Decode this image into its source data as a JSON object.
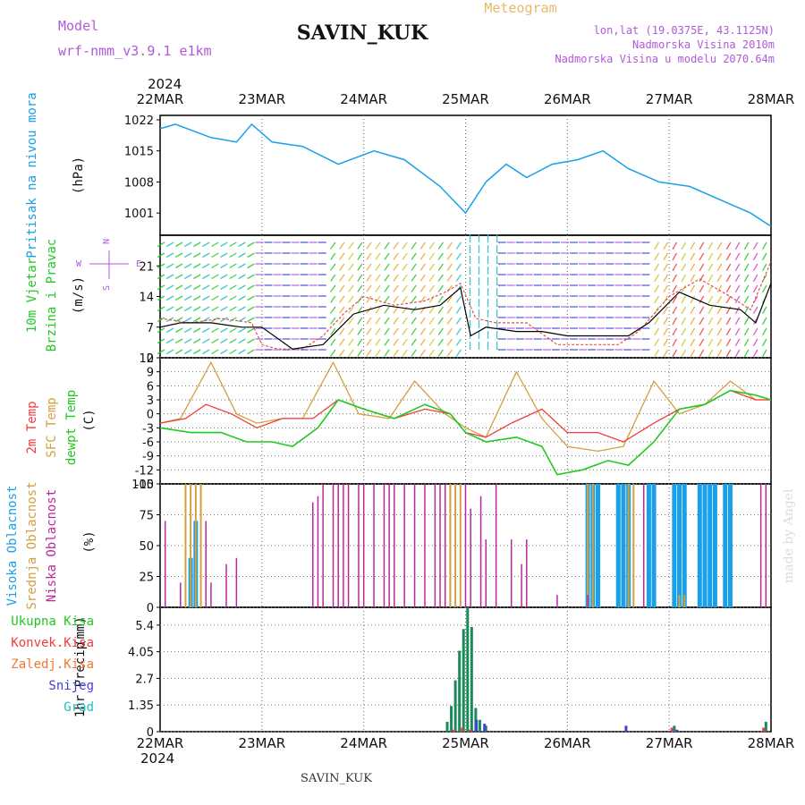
{
  "header": {
    "model_label": "Model",
    "model_name": "wrf-nmm_v3.9.1 e1km",
    "station": "SAVIN_KUK",
    "product": "Meteogram",
    "lonlat": "lon,lat (19.0375E, 43.1125N)",
    "elev": "Nadmorska Visina 2010m",
    "elev_model": "Nadmorska Visina u modelu 2070.64m",
    "year": "2024",
    "footer_station": "SAVIN_KUK",
    "watermark": "made by Angel"
  },
  "colors": {
    "purple": "#b05ad8",
    "orange": "#e8b86a",
    "sky": "#1aa0e8",
    "green": "#22c822",
    "red": "#f03c3c",
    "tan": "#d2a040",
    "magenta": "#c0259a",
    "blue": "#4040d8",
    "teal": "#20c0c0",
    "darkgreen": "#1a8a5a",
    "ochre": "#a8a020"
  },
  "chart_data": [
    {
      "type": "line",
      "panel": "pressure",
      "ylabel_1": "Pritisak na nivou mora",
      "ylabel_2": "(hPa)",
      "x_ticks": [
        "22MAR",
        "23MAR",
        "24MAR",
        "25MAR",
        "26MAR",
        "27MAR",
        "28MAR"
      ],
      "y_ticks": [
        "1022",
        "1015",
        "1008",
        "1001"
      ],
      "ylim": [
        996,
        1023
      ],
      "series": [
        {
          "x": [
            0,
            0.15,
            0.5,
            0.75,
            0.9,
            1.1,
            1.4,
            1.75,
            2.1,
            2.4,
            2.75,
            3.0,
            3.2,
            3.4,
            3.6,
            3.85,
            4.1,
            4.35,
            4.6,
            4.9,
            5.2,
            5.5,
            5.8,
            6.0
          ],
          "values": [
            1020,
            1021,
            1018,
            1017,
            1021,
            1017,
            1016,
            1012,
            1015,
            1013,
            1007,
            1001,
            1008,
            1012,
            1009,
            1012,
            1013,
            1015,
            1011,
            1008,
            1007,
            1004,
            1001,
            998
          ]
        }
      ]
    },
    {
      "type": "line",
      "panel": "wind",
      "ylabel_1": "10m Vjetar",
      "ylabel_2": "Brzina i Pravac",
      "ylabel_3": "(m/s)",
      "compass_n": "N",
      "compass_s": "S",
      "compass_w": "W",
      "compass_e": "E",
      "y_ticks": [
        "21",
        "14",
        "7",
        "0"
      ],
      "ylim": [
        0,
        28
      ],
      "series": [
        {
          "name": "speed",
          "x": [
            0,
            0.2,
            0.5,
            0.8,
            1.0,
            1.3,
            1.6,
            1.9,
            2.2,
            2.5,
            2.75,
            2.95,
            3.05,
            3.2,
            3.5,
            3.75,
            4.0,
            4.3,
            4.6,
            4.8,
            5.1,
            5.4,
            5.7,
            5.85,
            6.0
          ],
          "values": [
            7,
            8,
            8,
            7,
            7,
            2,
            3,
            10,
            12,
            11,
            12,
            16,
            5,
            7,
            6,
            6,
            5,
            5,
            5,
            8,
            15,
            12,
            11,
            8,
            17
          ]
        },
        {
          "name": "gust",
          "x": [
            0,
            0.3,
            0.6,
            0.9,
            1.0,
            1.15,
            1.4,
            1.6,
            1.8,
            2.0,
            2.3,
            2.6,
            2.8,
            2.95,
            3.1,
            3.3,
            3.6,
            3.9,
            4.2,
            4.5,
            4.7,
            5.0,
            5.3,
            5.6,
            5.8,
            6.0
          ],
          "values": [
            9,
            8,
            9,
            8,
            3,
            2,
            2,
            5,
            10,
            14,
            12,
            13,
            15,
            17,
            9,
            8,
            8,
            3,
            3,
            3,
            6,
            14,
            18,
            14,
            11,
            22
          ]
        }
      ]
    },
    {
      "type": "line",
      "panel": "temperature",
      "ylabel_1": "2m Temp",
      "ylabel_2": "SFC Temp",
      "ylabel_3": "dewpt Temp",
      "ylabel_4": "(C)",
      "y_ticks": [
        "12",
        "9",
        "6",
        "3",
        "0",
        "-3",
        "-6",
        "-9",
        "-12",
        "-15"
      ],
      "ylim": [
        -15,
        12
      ],
      "series": [
        {
          "name": "2m Temp",
          "x": [
            0,
            0.25,
            0.45,
            0.7,
            0.95,
            1.2,
            1.5,
            1.75,
            2.0,
            2.3,
            2.6,
            2.85,
            3.0,
            3.2,
            3.45,
            3.75,
            4.0,
            4.3,
            4.55,
            4.85,
            5.1,
            5.35,
            5.6,
            5.85,
            6.0
          ],
          "values": [
            -2,
            -1,
            2,
            0,
            -3,
            -1,
            -1,
            3,
            1,
            -1,
            1,
            0,
            -4,
            -5,
            -2,
            1,
            -4,
            -4,
            -6,
            -2,
            1,
            2,
            5,
            3,
            3
          ]
        },
        {
          "name": "SFC Temp",
          "x": [
            0,
            0.2,
            0.5,
            0.75,
            0.95,
            1.2,
            1.4,
            1.7,
            1.95,
            2.25,
            2.5,
            2.8,
            3.0,
            3.2,
            3.5,
            3.75,
            4.0,
            4.3,
            4.55,
            4.85,
            5.1,
            5.35,
            5.6,
            5.85,
            6.0
          ],
          "values": [
            -2,
            -1,
            11,
            0,
            -2,
            -1,
            -1,
            11,
            0,
            -1,
            7,
            0,
            -3,
            -5,
            9,
            -1,
            -7,
            -8,
            -7,
            7,
            0,
            2,
            7,
            3,
            3
          ]
        },
        {
          "name": "dewpt Temp",
          "x": [
            0,
            0.3,
            0.6,
            0.85,
            1.1,
            1.3,
            1.55,
            1.75,
            2.0,
            2.3,
            2.6,
            2.85,
            3.0,
            3.2,
            3.5,
            3.75,
            3.9,
            4.15,
            4.4,
            4.6,
            4.85,
            5.1,
            5.35,
            5.6,
            5.85,
            6.0
          ],
          "values": [
            -3,
            -4,
            -4,
            -6,
            -6,
            -7,
            -3,
            3,
            1,
            -1,
            2,
            0,
            -4,
            -6,
            -5,
            -7,
            -13,
            -12,
            -10,
            -11,
            -6,
            1,
            2,
            5,
            4,
            3
          ]
        }
      ]
    },
    {
      "type": "bar",
      "panel": "cloud",
      "ylabel_1": "Visoka Oblacnost",
      "ylabel_2": "Srednja Oblacnost",
      "ylabel_3": "Niska Oblacnost",
      "ylabel_4": "(%)",
      "y_ticks": [
        "100",
        "75",
        "50",
        "25",
        "0"
      ],
      "ylim": [
        0,
        100
      ],
      "series": [
        {
          "name": "Visoka Oblacnost",
          "x": [
            0.3,
            0.35,
            4.2,
            4.25,
            4.3,
            4.5,
            4.55,
            4.6,
            4.8,
            4.85,
            5.05,
            5.1,
            5.15,
            5.3,
            5.35,
            5.4,
            5.45,
            5.55,
            5.6
          ],
          "values": [
            40,
            70,
            100,
            100,
            100,
            100,
            100,
            100,
            100,
            100,
            100,
            100,
            100,
            100,
            100,
            100,
            100,
            100,
            100
          ]
        },
        {
          "name": "Srednja Oblacnost",
          "x": [
            0.25,
            0.3,
            0.35,
            0.4,
            2.85,
            2.9,
            2.95,
            4.2,
            4.25,
            4.6,
            4.65,
            5.1,
            5.15
          ],
          "values": [
            100,
            100,
            100,
            100,
            100,
            100,
            100,
            100,
            100,
            100,
            100,
            10,
            10
          ]
        },
        {
          "name": "Niska Oblacnost",
          "x": [
            0.05,
            0.2,
            0.45,
            0.5,
            0.65,
            0.75,
            1.5,
            1.55,
            1.6,
            1.7,
            1.75,
            1.8,
            1.85,
            1.95,
            2.0,
            2.1,
            2.2,
            2.25,
            2.3,
            2.4,
            2.5,
            2.6,
            2.7,
            2.75,
            2.8,
            3.0,
            3.05,
            3.15,
            3.2,
            3.3,
            3.45,
            3.55,
            3.6,
            3.9,
            4.2,
            4.75,
            5.9,
            5.95
          ],
          "values": [
            70,
            20,
            70,
            20,
            35,
            40,
            85,
            90,
            100,
            100,
            100,
            100,
            100,
            100,
            100,
            100,
            100,
            100,
            100,
            100,
            100,
            100,
            100,
            100,
            100,
            100,
            80,
            90,
            55,
            100,
            55,
            35,
            55,
            10,
            10,
            100,
            100,
            100
          ]
        }
      ]
    },
    {
      "type": "bar",
      "panel": "precip",
      "ylabel_1": "1hr Precip",
      "ylabel_2": "(mm)",
      "legend": [
        "Ukupna Kisa",
        "Konvek.Kisa",
        "Zaledj.Kisa",
        "Snijeg",
        "Grad"
      ],
      "y_ticks": [
        "5.4",
        "4.05",
        "2.7",
        "1.35",
        "0"
      ],
      "ylim": [
        0,
        6.3
      ],
      "series": [
        {
          "name": "Ukupna Kisa",
          "x": [
            2.82,
            2.86,
            2.9,
            2.94,
            2.98,
            3.02,
            3.06,
            3.1,
            3.14,
            3.2,
            5.05,
            5.95
          ],
          "values": [
            0.5,
            1.3,
            2.6,
            4.1,
            5.2,
            6.3,
            5.3,
            1.2,
            0.6,
            0.3,
            0.3,
            0.5
          ]
        },
        {
          "name": "Konvek.Kisa",
          "x": [
            2.86,
            2.94,
            3.02,
            5.0,
            5.9
          ],
          "values": [
            0.1,
            0.2,
            0.1,
            0.2,
            0.2
          ]
        },
        {
          "name": "Snijeg",
          "x": [
            3.08,
            3.16,
            4.55,
            5.05
          ],
          "values": [
            0.6,
            0.4,
            0.3,
            0.1
          ]
        }
      ]
    }
  ]
}
